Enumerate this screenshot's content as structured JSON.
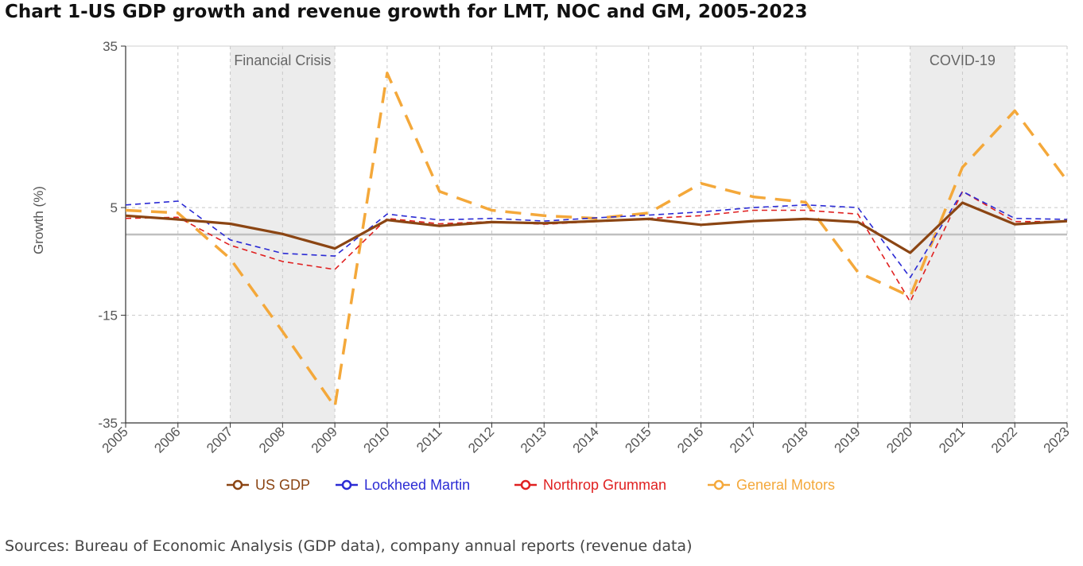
{
  "title": "Chart 1-US GDP growth and revenue growth for LMT, NOC and GM, 2005-2023",
  "source": "Sources: Bureau of Economic Analysis (GDP data), company annual reports (revenue data)",
  "chart_data": {
    "type": "line",
    "x": [
      "2005",
      "2006",
      "2007",
      "2008",
      "2009",
      "2010",
      "2011",
      "2012",
      "2013",
      "2014",
      "2015",
      "2016",
      "2017",
      "2018",
      "2019",
      "2020",
      "2021",
      "2022",
      "2023"
    ],
    "ylabel": "Growth (%)",
    "xlabel": "",
    "ylim": [
      -35,
      35
    ],
    "yticks": [
      35,
      5,
      -15,
      -35
    ],
    "grid": true,
    "legend_position": "bottom",
    "reference_line": 0,
    "shaded_regions": [
      {
        "label": "Financial Crisis",
        "from": "2007",
        "to": "2009"
      },
      {
        "label": "COVID-19",
        "from": "2020",
        "to": "2022"
      }
    ],
    "series": [
      {
        "name": "US GDP",
        "color": "#8b4513",
        "style": "solid",
        "values": [
          3.5,
          2.8,
          2.0,
          0.1,
          -2.6,
          2.7,
          1.6,
          2.3,
          2.1,
          2.5,
          2.9,
          1.8,
          2.5,
          2.9,
          2.3,
          -3.4,
          5.9,
          1.9,
          2.5
        ]
      },
      {
        "name": "Lockheed Martin",
        "color": "#2b2bd4",
        "style": "dashed",
        "values": [
          5.5,
          6.2,
          -1.0,
          -3.5,
          -4.0,
          3.8,
          2.7,
          3.0,
          2.5,
          3.1,
          3.6,
          4.2,
          5.0,
          5.5,
          5.0,
          -8.0,
          8.0,
          3.0,
          2.8
        ]
      },
      {
        "name": "Northrop Grumman",
        "color": "#e02020",
        "style": "dashed",
        "values": [
          3.0,
          3.2,
          -2.0,
          -5.0,
          -6.5,
          3.0,
          2.0,
          2.4,
          1.9,
          2.4,
          3.0,
          3.5,
          4.5,
          4.5,
          3.8,
          -12.5,
          8.0,
          2.4,
          2.4
        ]
      },
      {
        "name": "General Motors",
        "color": "#f4a83a",
        "style": "dashed",
        "values": [
          4.5,
          4.0,
          -4.5,
          -18.0,
          -32.0,
          30.0,
          8.0,
          4.5,
          3.5,
          3.0,
          4.0,
          9.5,
          7.0,
          6.0,
          -7.0,
          -11.5,
          12.5,
          23.0,
          10.0
        ]
      }
    ]
  }
}
